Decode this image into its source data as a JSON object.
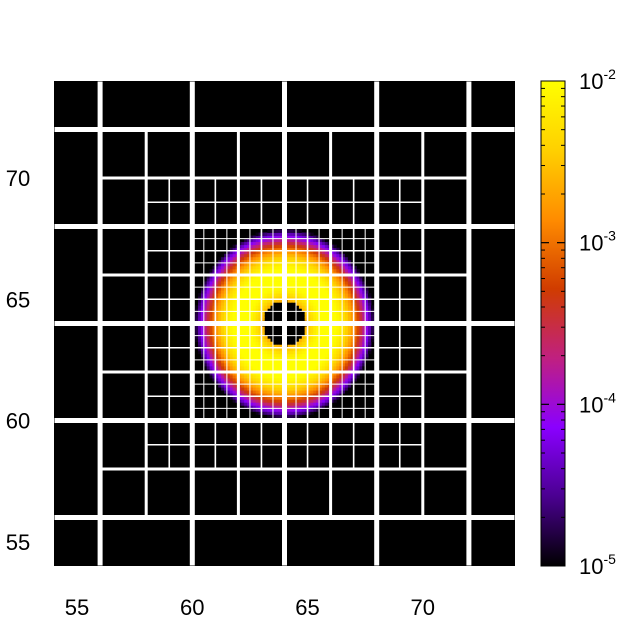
{
  "chart_data": {
    "type": "heatmap",
    "title": "",
    "xlabel": "",
    "ylabel": "",
    "xlim": [
      54,
      74
    ],
    "ylim": [
      54,
      74
    ],
    "x_ticks": [
      55,
      60,
      65,
      70
    ],
    "y_ticks": [
      55,
      60,
      65,
      70
    ],
    "x_tick_labels": [
      "55",
      "60",
      "65",
      "70"
    ],
    "y_tick_labels": [
      "55",
      "60",
      "65",
      "70"
    ],
    "colorbar": {
      "scale": "log",
      "range": [
        1e-05,
        0.01
      ],
      "ticks": [
        {
          "value": 1e-05,
          "base": "10",
          "exp": "-5"
        },
        {
          "value": 0.0001,
          "base": "10",
          "exp": "-4"
        },
        {
          "value": 0.001,
          "base": "10",
          "exp": "-3"
        },
        {
          "value": 0.01,
          "base": "10",
          "exp": "-2"
        }
      ],
      "colors": [
        "#000000",
        "#4a0090",
        "#8a00ff",
        "#c02080",
        "#d03c00",
        "#ff8c00",
        "#ffd000",
        "#ffff00"
      ]
    },
    "field": {
      "description_center": [
        64,
        64
      ],
      "peak_radius": 1.9,
      "ring_width": 0.75,
      "outer_radius": 3.9,
      "inner_radius": 0.95,
      "peak_value": 0.012
    },
    "mesh": {
      "coarse_spacing": 4,
      "medium_spacing": 2,
      "fine_spacing": 1,
      "medium_region": [
        56,
        72
      ],
      "fine_region": [
        58,
        70
      ],
      "finest_region": [
        60,
        68
      ]
    }
  }
}
